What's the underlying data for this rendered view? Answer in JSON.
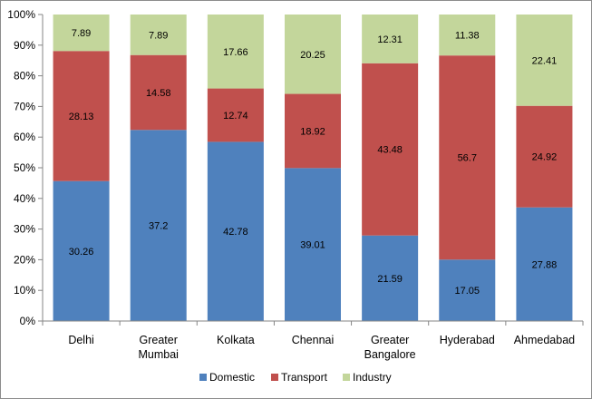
{
  "chart_data": {
    "type": "bar",
    "stacked": true,
    "normalized": true,
    "categories": [
      [
        "Delhi"
      ],
      [
        "Greater",
        "Mumbai"
      ],
      [
        "Kolkata"
      ],
      [
        "Chennai"
      ],
      [
        "Greater",
        "Bangalore"
      ],
      [
        "Hyderabad"
      ],
      [
        "Ahmedabad"
      ]
    ],
    "series": [
      {
        "name": "Domestic",
        "color": "#4f81bd",
        "values": [
          30.26,
          37.2,
          42.78,
          39.01,
          21.59,
          17.05,
          27.88
        ]
      },
      {
        "name": "Transport",
        "color": "#c0504d",
        "values": [
          28.13,
          14.58,
          12.74,
          18.92,
          43.48,
          56.7,
          24.92
        ]
      },
      {
        "name": "Industry",
        "color": "#c3d69b",
        "values": [
          7.89,
          7.89,
          17.66,
          20.25,
          12.31,
          11.38,
          22.41
        ]
      }
    ],
    "y_ticks": [
      "0%",
      "10%",
      "20%",
      "30%",
      "40%",
      "50%",
      "60%",
      "70%",
      "80%",
      "90%",
      "100%"
    ],
    "ylim": [
      0,
      100
    ],
    "grid": false,
    "legend_position": "bottom",
    "axis_color": "#868686"
  }
}
